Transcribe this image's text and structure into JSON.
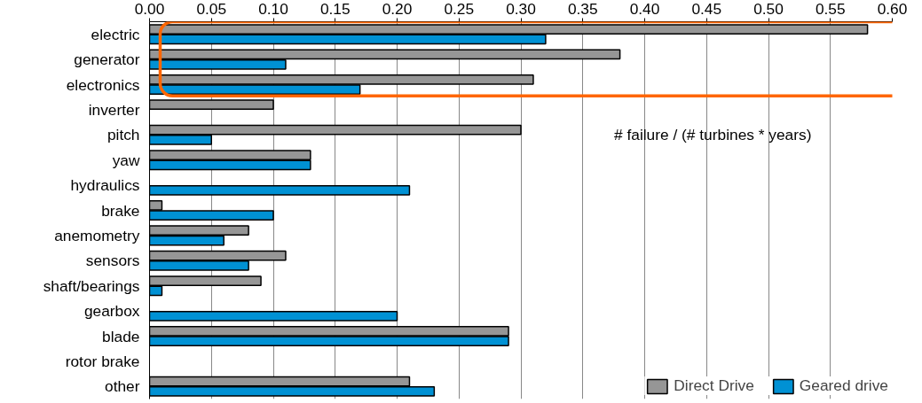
{
  "chart_data": {
    "type": "bar",
    "orientation": "horizontal",
    "categories": [
      "electric",
      "generator",
      "electronics",
      "inverter",
      "pitch",
      "yaw",
      "hydraulics",
      "brake",
      "anemometry",
      "sensors",
      "shaft/bearings",
      "gearbox",
      "blade",
      "rotor brake",
      "other"
    ],
    "series": [
      {
        "name": "Direct Drive",
        "color": "#969696",
        "values": [
          0.58,
          0.38,
          0.31,
          0.1,
          0.3,
          0.13,
          null,
          0.01,
          0.08,
          0.11,
          0.09,
          null,
          0.29,
          null,
          0.21
        ]
      },
      {
        "name": "Geared drive",
        "color": "#0091d4",
        "values": [
          0.32,
          0.11,
          0.17,
          null,
          0.05,
          0.13,
          0.21,
          0.1,
          0.06,
          0.08,
          0.01,
          0.2,
          0.29,
          null,
          0.23
        ]
      }
    ],
    "xlim": [
      0,
      0.6
    ],
    "xticks": [
      {
        "value": 0,
        "label": "0.00"
      },
      {
        "value": 0.05,
        "label": "0.05"
      },
      {
        "value": 0.1,
        "label": "0.10"
      },
      {
        "value": 0.15,
        "label": "0.15"
      },
      {
        "value": 0.2,
        "label": "0.20"
      },
      {
        "value": 0.25,
        "label": "0.25"
      },
      {
        "value": 0.3,
        "label": "0.30"
      },
      {
        "value": 0.35,
        "label": "0.35"
      },
      {
        "value": 0.4,
        "label": "0.40"
      },
      {
        "value": 0.45,
        "label": "0.45"
      },
      {
        "value": 0.5,
        "label": "0.50"
      },
      {
        "value": 0.55,
        "label": "0.55"
      },
      {
        "value": 0.6,
        "label": "0.60"
      }
    ],
    "grid": "x",
    "legend": "bottom right",
    "annotations": [
      "# failure / (# turbines * years)"
    ]
  }
}
